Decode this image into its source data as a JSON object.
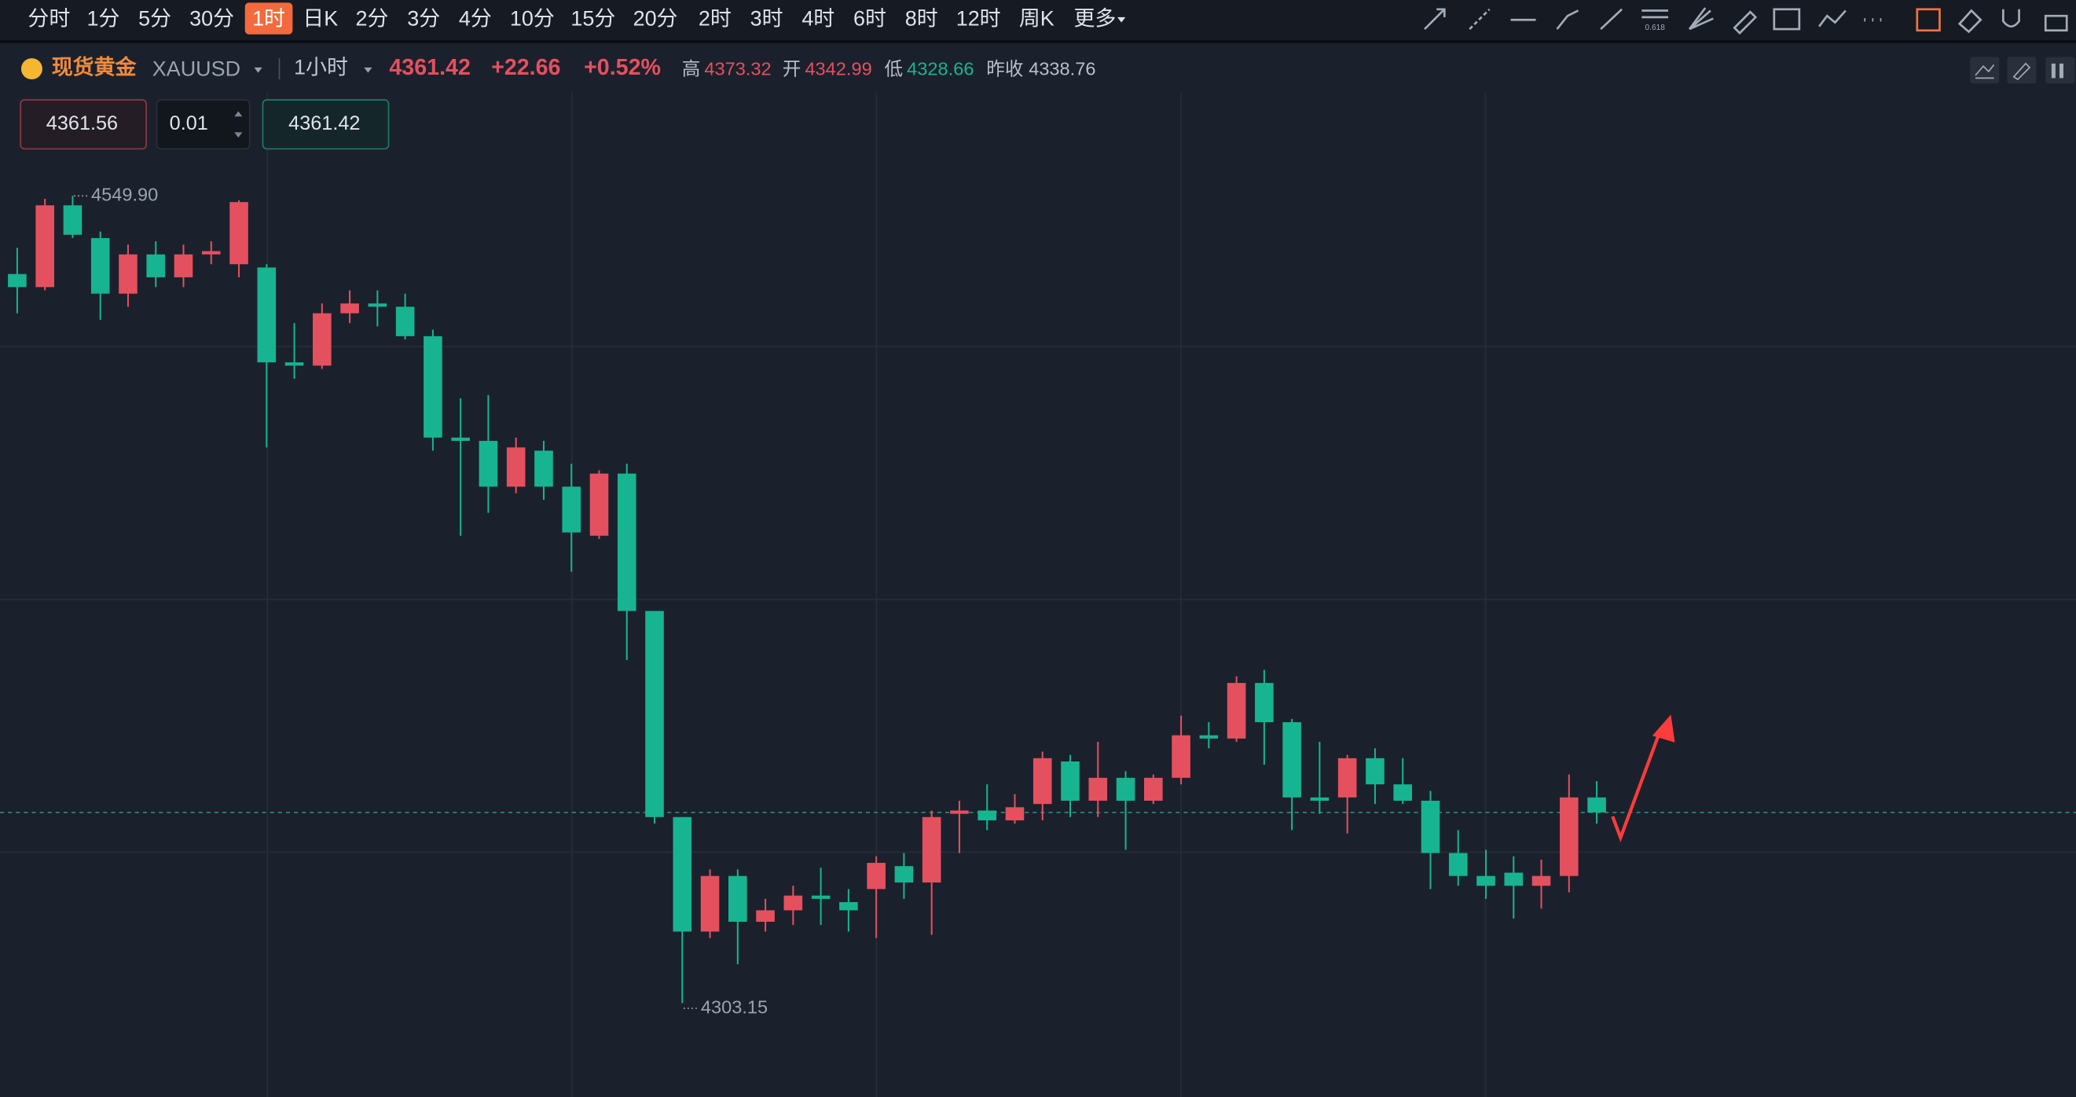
{
  "toolbar": {
    "timeframes": [
      {
        "label": "分时",
        "active": false
      },
      {
        "label": "1分",
        "active": false
      },
      {
        "label": "5分",
        "active": false
      },
      {
        "label": "30分",
        "active": false
      },
      {
        "label": "1时",
        "active": true
      },
      {
        "label": "日K",
        "active": false
      },
      {
        "label": "2分",
        "active": false
      },
      {
        "label": "3分",
        "active": false
      },
      {
        "label": "4分",
        "active": false
      },
      {
        "label": "10分",
        "active": false
      },
      {
        "label": "15分",
        "active": false
      },
      {
        "label": "20分",
        "active": false
      },
      {
        "label": "2时",
        "active": false
      },
      {
        "label": "3时",
        "active": false
      },
      {
        "label": "4时",
        "active": false
      },
      {
        "label": "6时",
        "active": false
      },
      {
        "label": "8时",
        "active": false
      },
      {
        "label": "12时",
        "active": false
      },
      {
        "label": "周K",
        "active": false
      }
    ],
    "more": "更多"
  },
  "symbol": {
    "name": "现货黄金",
    "code": "XAUUSD",
    "interval": "1小时",
    "price": 4361.42,
    "change": "+22.66",
    "change_percent": "+0.52%",
    "stats": [
      {
        "label": "高",
        "value": "4373.32"
      },
      {
        "label": "开",
        "value": "4342.99"
      },
      {
        "label": "低",
        "value": "4328.66"
      },
      {
        "label": "昨收",
        "value": "4338.76"
      }
    ]
  },
  "order": {
    "ask": "4361.56",
    "quantity": "0.01",
    "bid": "4361.42"
  },
  "chart_data": {
    "type": "candlestick",
    "open": [
      4526,
      4522,
      4547,
      4537,
      4520,
      4532,
      4525,
      4532,
      4529,
      4528,
      4499,
      4498,
      4514,
      4517,
      4516,
      4507,
      4476,
      4475,
      4461,
      4472,
      4461,
      4446,
      4465,
      4423,
      4360,
      4325,
      4342,
      4328,
      4331.5,
      4336,
      4334,
      4338,
      4345,
      4340,
      4361,
      4362,
      4359,
      4364,
      4377,
      4365,
      4372,
      4365,
      4372,
      4385,
      4384,
      4401,
      4389,
      4366,
      4366,
      4378,
      4370,
      4365,
      4349,
      4342,
      4343,
      4339,
      4342,
      4366
    ],
    "high": [
      4534,
      4549,
      4549.9,
      4539,
      4535,
      4536,
      4535,
      4536,
      4548.5,
      4529,
      4511,
      4517,
      4521,
      4521,
      4520,
      4509,
      4488,
      4489,
      4476,
      4475,
      4468,
      4466,
      4468,
      4423,
      4360,
      4344,
      4344,
      4335,
      4339,
      4344.5,
      4338,
      4348,
      4349,
      4362,
      4365,
      4370,
      4367,
      4380,
      4379,
      4383,
      4374,
      4373,
      4391,
      4389,
      4403,
      4405,
      4390,
      4383,
      4379,
      4381,
      4378,
      4368,
      4356,
      4350,
      4348,
      4347,
      4373,
      4371
    ],
    "low": [
      4514,
      4521,
      4537,
      4512,
      4516,
      4522,
      4522,
      4529,
      4525,
      4473,
      4494,
      4497,
      4511,
      4510,
      4506,
      4472,
      4446,
      4453,
      4459,
      4457,
      4435,
      4445,
      4408,
      4358,
      4303.15,
      4323,
      4315,
      4325,
      4327,
      4327,
      4325,
      4323,
      4335,
      4324,
      4349,
      4356,
      4358,
      4359,
      4360,
      4360,
      4350,
      4364,
      4370,
      4381,
      4383,
      4376,
      4356,
      4361,
      4355,
      4364,
      4364,
      4338,
      4339,
      4335,
      4329,
      4332,
      4337,
      4358
    ],
    "close": [
      4522,
      4547,
      4538,
      4520,
      4532,
      4525,
      4532,
      4533,
      4548,
      4499,
      4498,
      4514,
      4517,
      4516,
      4507,
      4476,
      4475,
      4461,
      4473,
      4461,
      4447,
      4465,
      4423,
      4360,
      4325,
      4342,
      4328,
      4331.5,
      4336,
      4335,
      4331.5,
      4346,
      4340,
      4360,
      4362,
      4359,
      4363,
      4378,
      4365,
      4372,
      4365,
      4372,
      4385,
      4384,
      4401,
      4389,
      4366,
      4365,
      4378,
      4370,
      4365,
      4349,
      4342,
      4339,
      4339,
      4342,
      4366,
      4361.42
    ],
    "up_color": "#e5505f",
    "down_color": "#17b491",
    "extremes": [
      {
        "value": 4549.9,
        "label": "4549.90"
      },
      {
        "value": 4303.15,
        "label": "4303.15"
      }
    ]
  }
}
